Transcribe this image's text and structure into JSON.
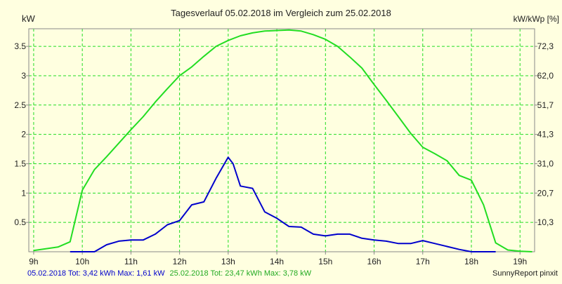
{
  "chart_data": {
    "type": "line",
    "title": "Tagesverlauf 05.02.2018 im Vergleich zum 25.02.2018",
    "left_unit": "kW",
    "right_unit": "kW/kWp [%]",
    "xlabel": "",
    "ylabel": "kW",
    "xlim": [
      8.9,
      19.3
    ],
    "ylim": [
      0,
      3.8
    ],
    "x_ticks": [
      {
        "value": 9,
        "label": "9h"
      },
      {
        "value": 10,
        "label": "10h"
      },
      {
        "value": 11,
        "label": "11h"
      },
      {
        "value": 12,
        "label": "12h"
      },
      {
        "value": 13,
        "label": "13h"
      },
      {
        "value": 14,
        "label": "14h"
      },
      {
        "value": 15,
        "label": "15h"
      },
      {
        "value": 16,
        "label": "16h"
      },
      {
        "value": 17,
        "label": "17h"
      },
      {
        "value": 18,
        "label": "18h"
      },
      {
        "value": 19,
        "label": "19h"
      }
    ],
    "y_ticks_left": [
      {
        "value": 0.5,
        "label": "0.5"
      },
      {
        "value": 1,
        "label": "1"
      },
      {
        "value": 1.5,
        "label": "1.5"
      },
      {
        "value": 2,
        "label": "2"
      },
      {
        "value": 2.5,
        "label": "2.5"
      },
      {
        "value": 3,
        "label": "3"
      },
      {
        "value": 3.5,
        "label": "3.5"
      }
    ],
    "y_ticks_right": [
      {
        "value": 0.5,
        "label": "10,3"
      },
      {
        "value": 1,
        "label": "20,7"
      },
      {
        "value": 1.5,
        "label": "31,0"
      },
      {
        "value": 2,
        "label": "41,3"
      },
      {
        "value": 2.5,
        "label": "51,7"
      },
      {
        "value": 3,
        "label": "62,0"
      },
      {
        "value": 3.5,
        "label": "72,3"
      }
    ],
    "grid": true,
    "series": [
      {
        "name": "05.02.2018",
        "color": "#0000cc",
        "summary": "05.02.2018 Tot: 3,42 kWh Max: 1,61 kW",
        "x": [
          9.75,
          10.0,
          10.25,
          10.5,
          10.75,
          11.0,
          11.25,
          11.5,
          11.75,
          12.0,
          12.25,
          12.5,
          12.75,
          13.0,
          13.1,
          13.25,
          13.5,
          13.75,
          14.0,
          14.25,
          14.5,
          14.75,
          15.0,
          15.25,
          15.5,
          15.75,
          16.0,
          16.25,
          16.5,
          16.75,
          17.0,
          17.25,
          17.5,
          17.75,
          18.0,
          18.25,
          18.5
        ],
        "y": [
          0.0,
          0.0,
          0.0,
          0.12,
          0.18,
          0.2,
          0.2,
          0.3,
          0.46,
          0.53,
          0.8,
          0.85,
          1.25,
          1.61,
          1.5,
          1.12,
          1.08,
          0.68,
          0.57,
          0.43,
          0.42,
          0.3,
          0.27,
          0.3,
          0.3,
          0.23,
          0.2,
          0.18,
          0.14,
          0.14,
          0.19,
          0.14,
          0.09,
          0.04,
          0.0,
          0.0,
          0.0
        ]
      },
      {
        "name": "25.02.2018",
        "color": "#22dd22",
        "summary": "25.02.2018 Tot: 23,47 kWh Max: 3,78 kW",
        "x": [
          9.0,
          9.25,
          9.5,
          9.75,
          10.0,
          10.25,
          10.5,
          10.75,
          11.0,
          11.25,
          11.5,
          11.75,
          12.0,
          12.25,
          12.5,
          12.75,
          13.0,
          13.25,
          13.5,
          13.75,
          14.0,
          14.25,
          14.5,
          14.75,
          15.0,
          15.25,
          15.5,
          15.75,
          16.0,
          16.25,
          16.5,
          16.75,
          17.0,
          17.25,
          17.5,
          17.75,
          18.0,
          18.25,
          18.5,
          18.75,
          19.0,
          19.25
        ],
        "y": [
          0.02,
          0.05,
          0.08,
          0.17,
          1.05,
          1.4,
          1.62,
          1.85,
          2.08,
          2.3,
          2.55,
          2.78,
          3.0,
          3.15,
          3.33,
          3.5,
          3.6,
          3.68,
          3.73,
          3.76,
          3.77,
          3.78,
          3.76,
          3.7,
          3.62,
          3.5,
          3.32,
          3.13,
          2.85,
          2.58,
          2.3,
          2.02,
          1.78,
          1.67,
          1.55,
          1.3,
          1.22,
          0.8,
          0.15,
          0.03,
          0.01,
          0.0
        ]
      }
    ]
  },
  "footer": {
    "series1_summary": "05.02.2018 Tot: 3,42 kWh Max: 1,61 kW",
    "series2_summary": "25.02.2018 Tot: 23,47 kWh Max: 3,78 kW",
    "credit": "SunnyReport pinxit"
  },
  "colors": {
    "background": "#ffffe0",
    "grid": "#22dd22",
    "axis": "#888888",
    "text": "#222222"
  }
}
